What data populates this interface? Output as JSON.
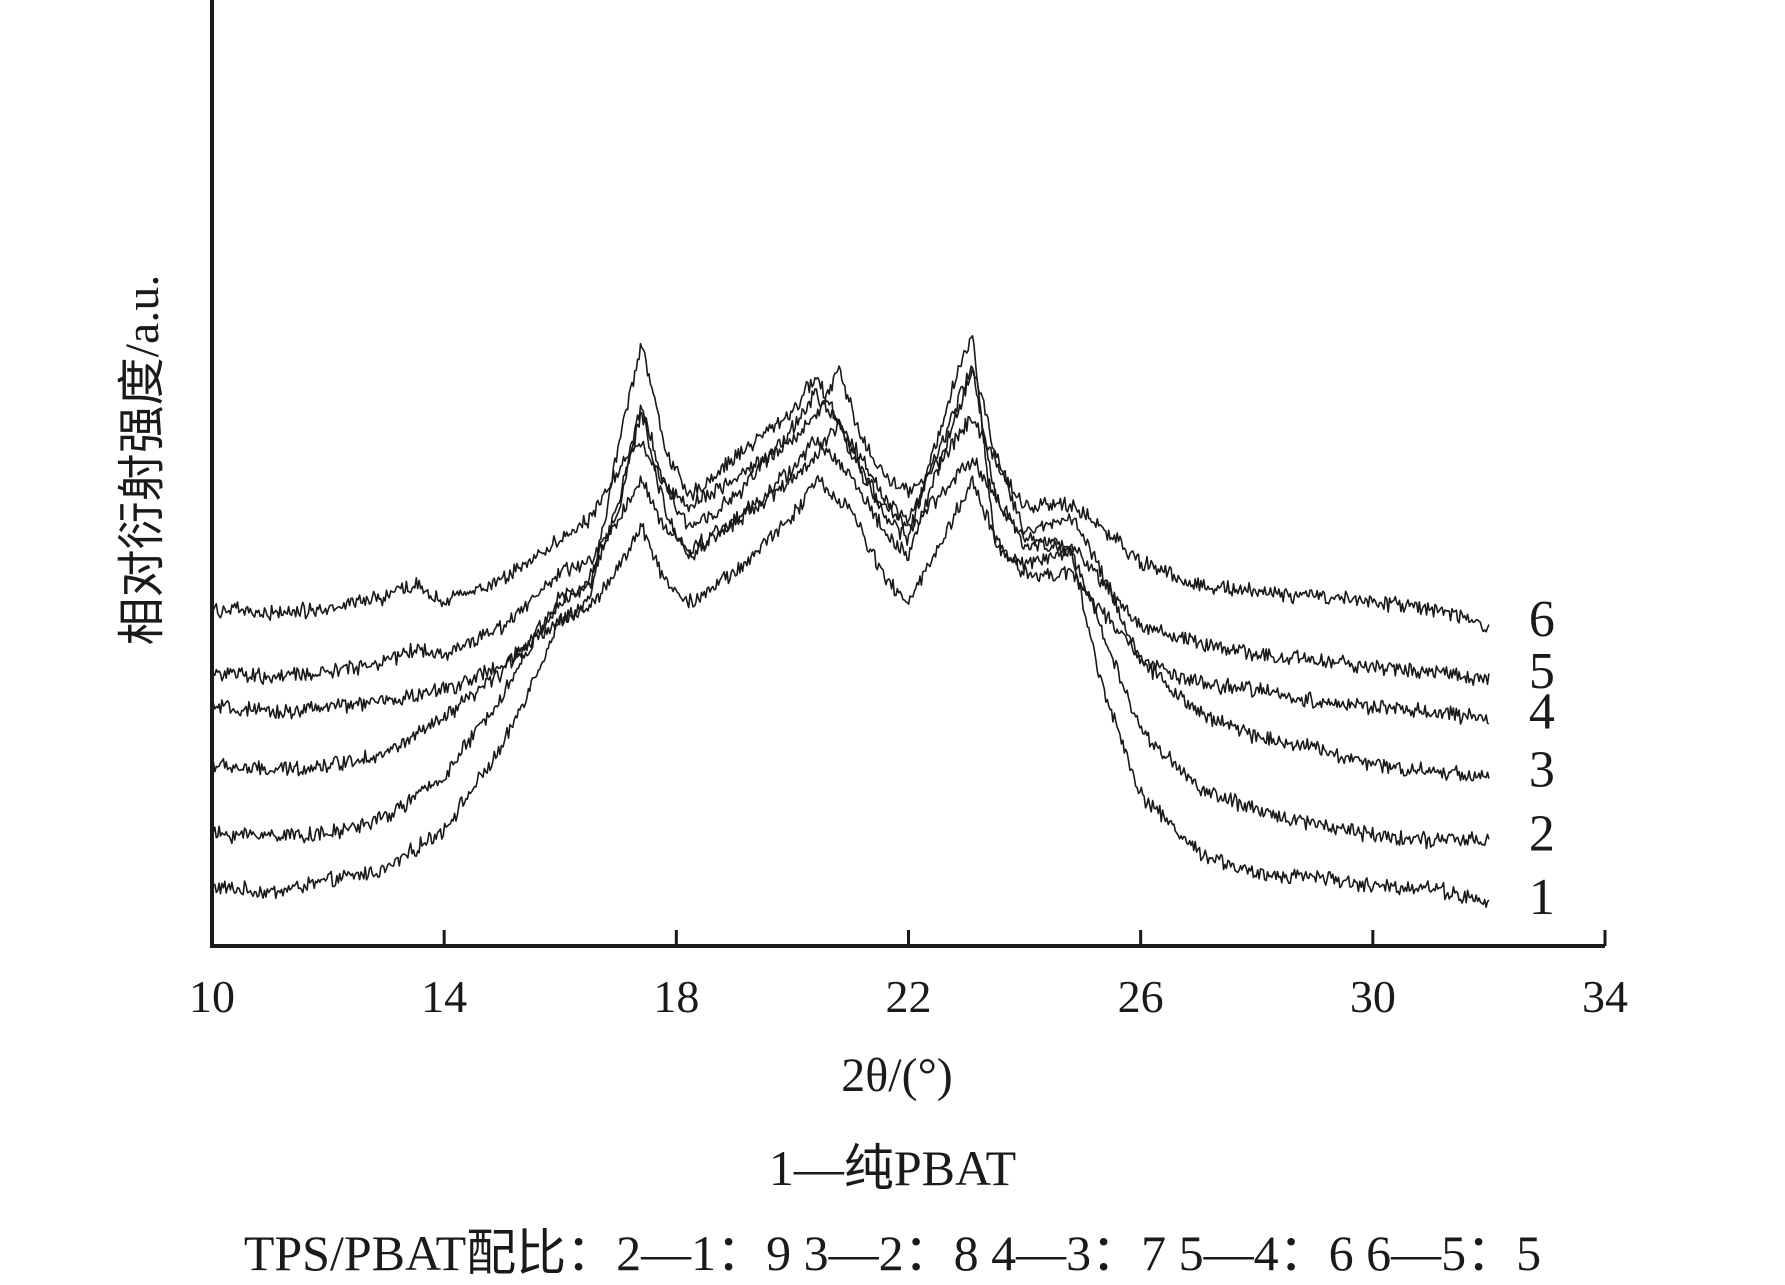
{
  "chart_data": {
    "type": "line",
    "xlabel": "2θ/(°)",
    "ylabel": "相对衍射强度/a.u.",
    "xlim": [
      10,
      34
    ],
    "x_ticks": [
      10,
      14,
      18,
      22,
      26,
      30,
      34
    ],
    "y_ticks": [],
    "grid": false,
    "legend": "none",
    "x_range_measured": [
      10,
      32
    ],
    "series": [
      {
        "name": "1",
        "offset": 0.0,
        "points": [
          [
            10,
            0.04
          ],
          [
            11,
            0.03
          ],
          [
            12,
            0.05
          ],
          [
            13,
            0.07
          ],
          [
            14,
            0.14
          ],
          [
            15,
            0.28
          ],
          [
            16,
            0.5
          ],
          [
            16.5,
            0.53
          ],
          [
            17,
            0.8
          ],
          [
            17.4,
            0.98
          ],
          [
            17.8,
            0.8
          ],
          [
            18.2,
            0.71
          ],
          [
            19,
            0.78
          ],
          [
            20,
            0.86
          ],
          [
            20.4,
            0.92
          ],
          [
            21,
            0.8
          ],
          [
            21.6,
            0.68
          ],
          [
            22.0,
            0.64
          ],
          [
            22.6,
            0.85
          ],
          [
            23.1,
            1.0
          ],
          [
            23.5,
            0.62
          ],
          [
            24,
            0.6
          ],
          [
            24.8,
            0.62
          ],
          [
            25.3,
            0.4
          ],
          [
            26,
            0.2
          ],
          [
            27,
            0.1
          ],
          [
            28,
            0.06
          ],
          [
            29,
            0.06
          ],
          [
            30,
            0.04
          ],
          [
            31,
            0.04
          ],
          [
            32,
            0.01
          ]
        ]
      },
      {
        "name": "2",
        "offset": 0.11,
        "points": [
          [
            10,
            0.02
          ],
          [
            11,
            0.02
          ],
          [
            12,
            0.02
          ],
          [
            13,
            0.05
          ],
          [
            14,
            0.12
          ],
          [
            15,
            0.26
          ],
          [
            16,
            0.43
          ],
          [
            16.4,
            0.44
          ],
          [
            17,
            0.58
          ],
          [
            17.4,
            0.75
          ],
          [
            17.8,
            0.58
          ],
          [
            18.2,
            0.5
          ],
          [
            19,
            0.56
          ],
          [
            20,
            0.65
          ],
          [
            20.4,
            0.7
          ],
          [
            21,
            0.64
          ],
          [
            21.6,
            0.54
          ],
          [
            22.0,
            0.5
          ],
          [
            22.6,
            0.68
          ],
          [
            23.1,
            0.82
          ],
          [
            23.5,
            0.6
          ],
          [
            24,
            0.52
          ],
          [
            24.8,
            0.51
          ],
          [
            25.3,
            0.38
          ],
          [
            26,
            0.2
          ],
          [
            27,
            0.1
          ],
          [
            28,
            0.06
          ],
          [
            29,
            0.04
          ],
          [
            30,
            0.02
          ],
          [
            31,
            0.01
          ],
          [
            32,
            0.01
          ]
        ]
      },
      {
        "name": "3",
        "offset": 0.23,
        "points": [
          [
            10,
            0.02
          ],
          [
            11,
            0.01
          ],
          [
            12,
            0.02
          ],
          [
            13,
            0.04
          ],
          [
            14,
            0.1
          ],
          [
            15,
            0.18
          ],
          [
            16,
            0.3
          ],
          [
            16.5,
            0.33
          ],
          [
            17,
            0.47
          ],
          [
            17.4,
            0.64
          ],
          [
            17.8,
            0.5
          ],
          [
            18.2,
            0.43
          ],
          [
            19,
            0.48
          ],
          [
            20,
            0.6
          ],
          [
            20.4,
            0.66
          ],
          [
            21,
            0.58
          ],
          [
            21.6,
            0.48
          ],
          [
            22.0,
            0.44
          ],
          [
            22.6,
            0.58
          ],
          [
            23.1,
            0.71
          ],
          [
            23.5,
            0.56
          ],
          [
            24,
            0.42
          ],
          [
            24.8,
            0.45
          ],
          [
            25.3,
            0.36
          ],
          [
            26,
            0.2
          ],
          [
            27,
            0.11
          ],
          [
            28,
            0.07
          ],
          [
            29,
            0.05
          ],
          [
            30,
            0.02
          ],
          [
            31,
            0.01
          ],
          [
            32,
            0.0
          ]
        ]
      },
      {
        "name": "4",
        "offset": 0.34,
        "points": [
          [
            10,
            0.01
          ],
          [
            11,
            0.0
          ],
          [
            12,
            0.01
          ],
          [
            13,
            0.02
          ],
          [
            14,
            0.04
          ],
          [
            15,
            0.08
          ],
          [
            16,
            0.16
          ],
          [
            16.5,
            0.18
          ],
          [
            17,
            0.25
          ],
          [
            17.4,
            0.32
          ],
          [
            17.8,
            0.23
          ],
          [
            18.2,
            0.19
          ],
          [
            19,
            0.24
          ],
          [
            20,
            0.34
          ],
          [
            20.4,
            0.4
          ],
          [
            21,
            0.35
          ],
          [
            21.6,
            0.23
          ],
          [
            22.0,
            0.19
          ],
          [
            22.6,
            0.3
          ],
          [
            23.1,
            0.4
          ],
          [
            23.5,
            0.3
          ],
          [
            24,
            0.24
          ],
          [
            24.8,
            0.24
          ],
          [
            25.3,
            0.18
          ],
          [
            26,
            0.09
          ],
          [
            27,
            0.05
          ],
          [
            28,
            0.04
          ],
          [
            29,
            0.02
          ],
          [
            30,
            0.01
          ],
          [
            31,
            0.0
          ],
          [
            32,
            -0.01
          ]
        ]
      },
      {
        "name": "5",
        "offset": 0.4,
        "points": [
          [
            10,
            0.01
          ],
          [
            11,
            0.0
          ],
          [
            12,
            0.01
          ],
          [
            13,
            0.03
          ],
          [
            13.5,
            0.05
          ],
          [
            14,
            0.04
          ],
          [
            15,
            0.09
          ],
          [
            16,
            0.18
          ],
          [
            16.5,
            0.2
          ],
          [
            17,
            0.27
          ],
          [
            17.4,
            0.34
          ],
          [
            17.8,
            0.26
          ],
          [
            18.2,
            0.22
          ],
          [
            19,
            0.27
          ],
          [
            20,
            0.34
          ],
          [
            20.4,
            0.38
          ],
          [
            20.8,
            0.44
          ],
          [
            21.2,
            0.35
          ],
          [
            21.6,
            0.29
          ],
          [
            22.0,
            0.26
          ],
          [
            22.6,
            0.32
          ],
          [
            23.1,
            0.38
          ],
          [
            23.5,
            0.31
          ],
          [
            24,
            0.24
          ],
          [
            24.8,
            0.23
          ],
          [
            25.3,
            0.17
          ],
          [
            26,
            0.09
          ],
          [
            27,
            0.06
          ],
          [
            28,
            0.04
          ],
          [
            29,
            0.03
          ],
          [
            30,
            0.02
          ],
          [
            31,
            0.01
          ],
          [
            32,
            0.0
          ]
        ]
      },
      {
        "name": "6",
        "offset": 0.51,
        "points": [
          [
            10,
            0.01
          ],
          [
            11,
            0.0
          ],
          [
            12,
            0.01
          ],
          [
            13,
            0.03
          ],
          [
            13.5,
            0.05
          ],
          [
            14,
            0.02
          ],
          [
            15,
            0.06
          ],
          [
            16,
            0.13
          ],
          [
            16.5,
            0.16
          ],
          [
            17,
            0.25
          ],
          [
            17.4,
            0.3
          ],
          [
            17.8,
            0.22
          ],
          [
            18.2,
            0.19
          ],
          [
            19,
            0.23
          ],
          [
            20,
            0.3
          ],
          [
            20.4,
            0.34
          ],
          [
            20.8,
            0.42
          ],
          [
            21.2,
            0.3
          ],
          [
            21.6,
            0.24
          ],
          [
            22.0,
            0.21
          ],
          [
            22.6,
            0.27
          ],
          [
            23.1,
            0.34
          ],
          [
            23.5,
            0.26
          ],
          [
            24,
            0.19
          ],
          [
            24.8,
            0.19
          ],
          [
            25.3,
            0.15
          ],
          [
            26,
            0.09
          ],
          [
            27,
            0.05
          ],
          [
            28,
            0.04
          ],
          [
            29,
            0.03
          ],
          [
            30,
            0.02
          ],
          [
            31,
            0.01
          ],
          [
            32,
            -0.02
          ]
        ]
      }
    ],
    "curve_labels": [
      "1",
      "2",
      "3",
      "4",
      "5",
      "6"
    ]
  },
  "caption": {
    "line1": "1—纯PBAT",
    "line2": "TPS/PBAT配比：2—1：9 3—2：8 4—3：7 5—4：6 6—5：5"
  },
  "colors": {
    "line": "#1a1a1a",
    "background": "#ffffff"
  }
}
